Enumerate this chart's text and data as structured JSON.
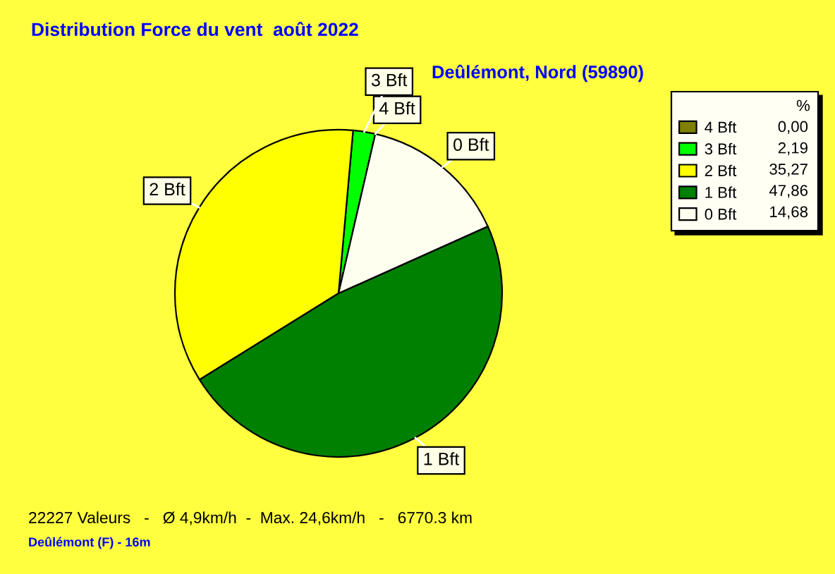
{
  "chart_data": {
    "type": "pie",
    "title": "Distribution Force du vent  août 2022",
    "subtitle": "Deûlémont, Nord (59890)",
    "legend_title": "%",
    "categories": [
      "4 Bft",
      "3 Bft",
      "2 Bft",
      "1 Bft",
      "0 Bft"
    ],
    "values": [
      0.0,
      2.19,
      35.27,
      47.86,
      14.68
    ],
    "value_labels": [
      "0,00",
      "2,19",
      "35,27",
      "47,86",
      "14,68"
    ],
    "colors": [
      "#808000",
      "#00ff00",
      "#ffff00",
      "#008000",
      "#fffff0"
    ],
    "legend": "top right",
    "annotations": [
      "22227 Valeurs   -   Ø 4,9km/h  -  Max. 24,6km/h   -   6770.3 km",
      "Deûlémont (F) - 16m"
    ]
  }
}
